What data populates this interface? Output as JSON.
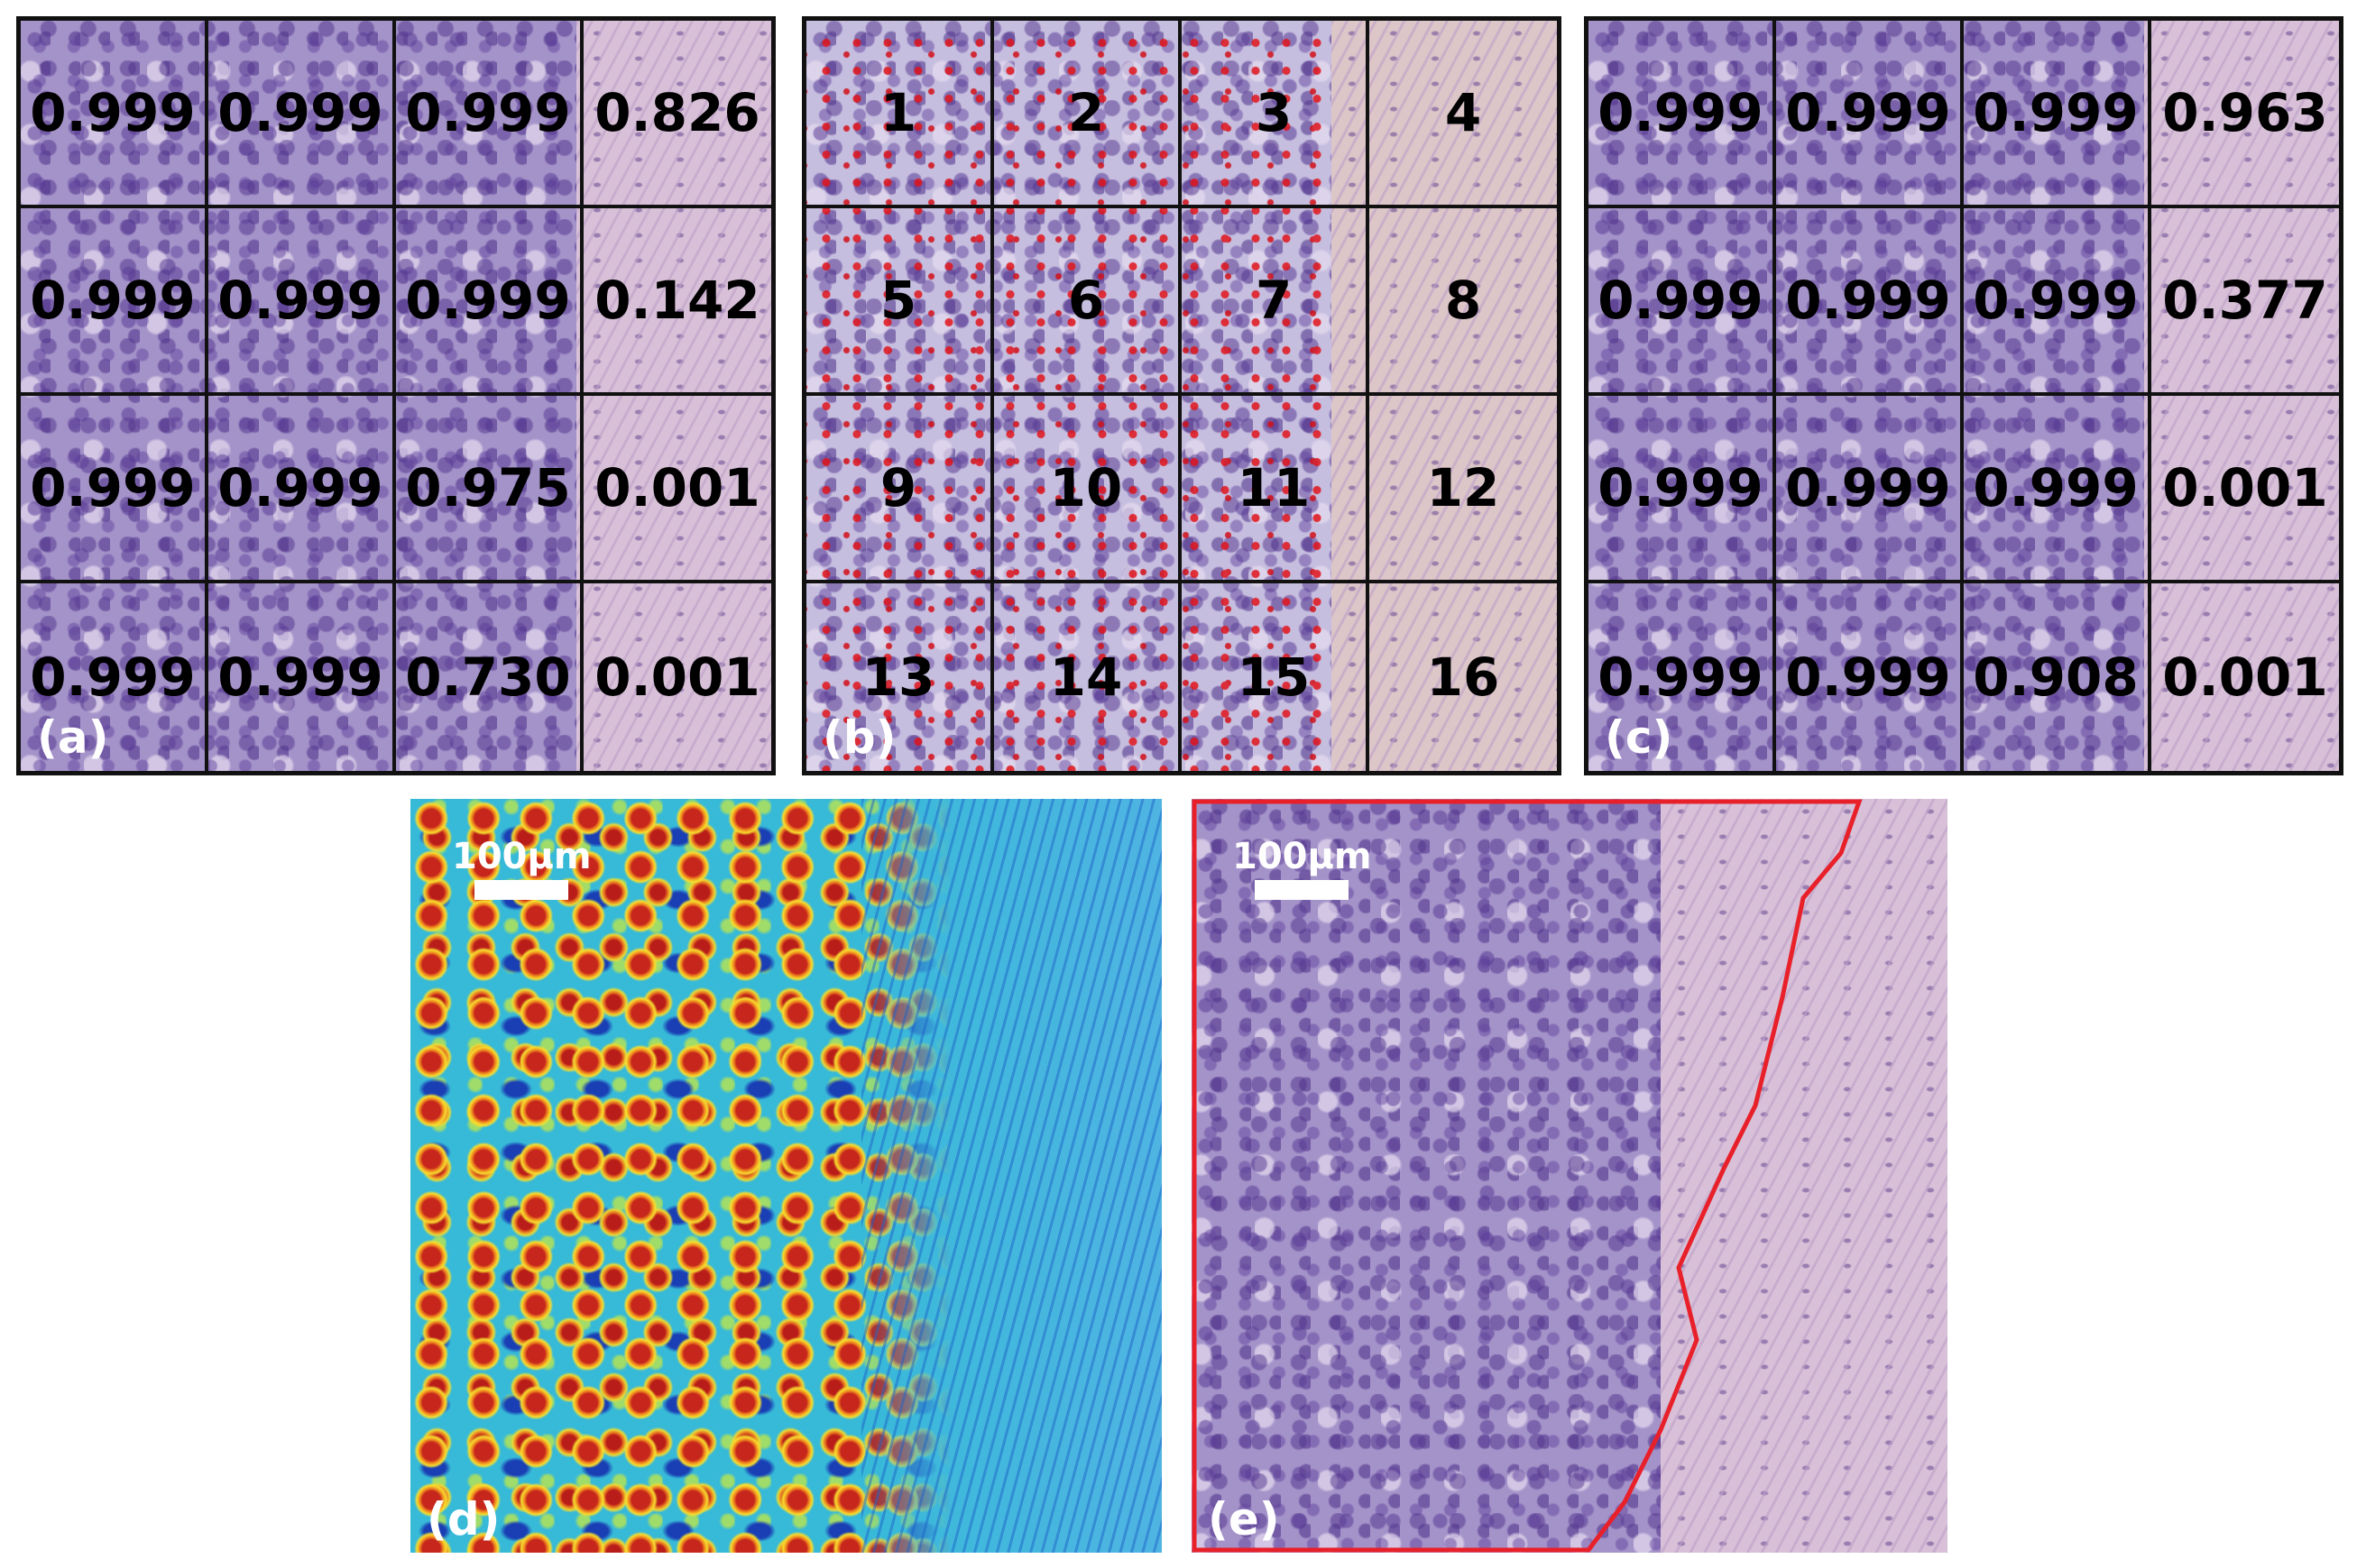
{
  "panels": [
    {
      "id": "a",
      "label": "(a)",
      "cells": [
        "0.999",
        "0.999",
        "0.999",
        "0.826",
        "0.999",
        "0.999",
        "0.999",
        "0.142",
        "0.999",
        "0.999",
        "0.975",
        "0.001",
        "0.999",
        "0.999",
        "0.730",
        "0.001"
      ]
    },
    {
      "id": "b",
      "label": "(b)",
      "cells": [
        "1",
        "2",
        "3",
        "4",
        "5",
        "6",
        "7",
        "8",
        "9",
        "10",
        "11",
        "12",
        "13",
        "14",
        "15",
        "16"
      ]
    },
    {
      "id": "c",
      "label": "(c)",
      "cells": [
        "0.999",
        "0.999",
        "0.999",
        "0.963",
        "0.999",
        "0.999",
        "0.999",
        "0.377",
        "0.999",
        "0.999",
        "0.999",
        "0.001",
        "0.999",
        "0.999",
        "0.908",
        "0.001"
      ]
    }
  ],
  "panel_d": {
    "label": "(d)",
    "scale_bar": "100μm"
  },
  "panel_e": {
    "label": "(e)",
    "scale_bar": "100μm",
    "boundary_color": "#e8202a"
  },
  "colors": {
    "grid_line": "#111111",
    "label": "#ffffff",
    "heatmap": [
      "#1a3fb4",
      "#37b9d8",
      "#9fdc6a",
      "#f6dc2e",
      "#f08a1e",
      "#c6261c"
    ]
  }
}
